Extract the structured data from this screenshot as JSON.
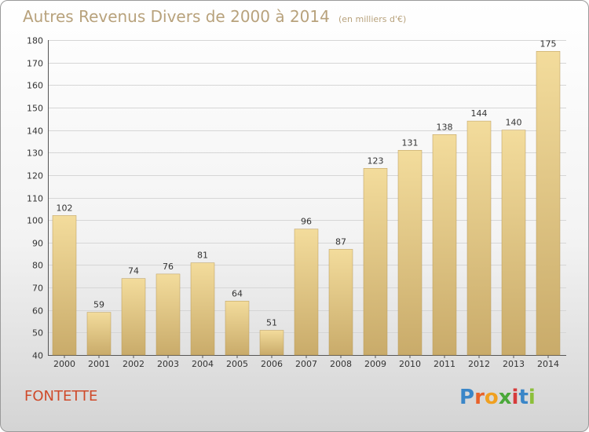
{
  "title": "Autres Revenus Divers de 2000 à 2014",
  "subtitle": "(en milliers d'€)",
  "commune": "FONTETTE",
  "logo": {
    "letters": [
      "P",
      "r",
      "o",
      "x",
      "i",
      "t",
      "i"
    ],
    "colors": [
      "#3a86c8",
      "#e8622a",
      "#f0a020",
      "#4aa83a",
      "#d63a3a",
      "#3a86c8",
      "#8cbf3a"
    ]
  },
  "chart_data": {
    "type": "bar",
    "title": "Autres Revenus Divers de 2000 à 2014",
    "subtitle": "(en milliers d'€)",
    "categories": [
      "2000",
      "2001",
      "2002",
      "2003",
      "2004",
      "2005",
      "2006",
      "2007",
      "2008",
      "2009",
      "2010",
      "2011",
      "2012",
      "2013",
      "2014"
    ],
    "values": [
      102,
      59,
      74,
      76,
      81,
      64,
      51,
      96,
      87,
      123,
      131,
      138,
      144,
      140,
      175
    ],
    "ylim": [
      40,
      180
    ],
    "yticks": [
      40,
      50,
      60,
      70,
      80,
      90,
      100,
      110,
      120,
      130,
      140,
      150,
      160,
      170,
      180
    ],
    "grid": true,
    "bar_color_top": "#f3dc9c",
    "bar_color_bottom": "#c9ab6a"
  }
}
